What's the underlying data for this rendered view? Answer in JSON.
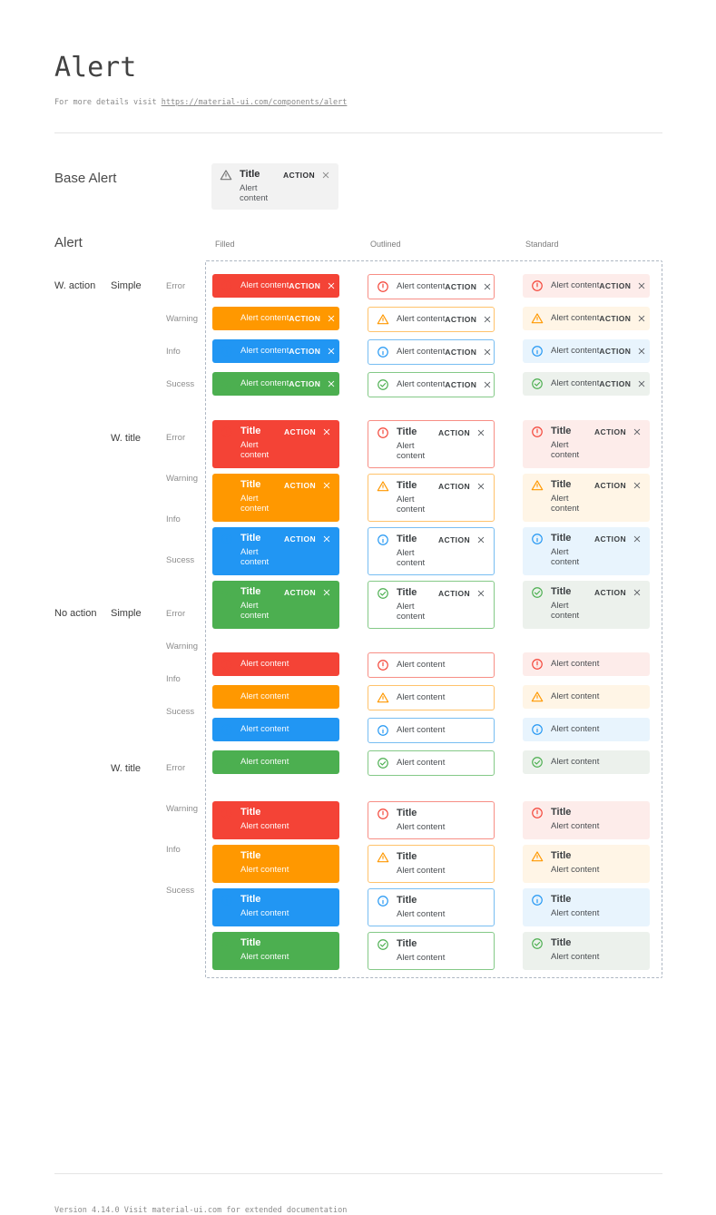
{
  "page": {
    "title": "Alert",
    "subtitle_prefix": "For more details visit ",
    "subtitle_link": "https://material-ui.com/components/alert",
    "footer_text": "Version 4.14.0  Visit material-ui.com for extended documentation"
  },
  "base_alert_section": {
    "label": "Base Alert",
    "alert": {
      "title": "Title",
      "content": "Alert content",
      "action_label": "ACTION"
    }
  },
  "alert_grid": {
    "section_label": "Alert",
    "column_headers": [
      "Filled",
      "Outlined",
      "Standard"
    ],
    "variants": [
      "filled",
      "outlined",
      "standard"
    ],
    "groups": [
      {
        "group_label": "W. action",
        "style_label": "Simple",
        "has_title": false,
        "has_action": true
      },
      {
        "group_label": "",
        "style_label": "W. title",
        "has_title": true,
        "has_action": true
      },
      {
        "group_label": "No action",
        "style_label": "Simple",
        "has_title": false,
        "has_action": false
      },
      {
        "group_label": "",
        "style_label": "W. title",
        "has_title": true,
        "has_action": false
      }
    ],
    "severities": [
      {
        "label": "Error",
        "key": "error",
        "icon": "error-icon"
      },
      {
        "label": "Warning",
        "key": "warning",
        "icon": "warning-icon"
      },
      {
        "label": "Info",
        "key": "info",
        "icon": "info-icon"
      },
      {
        "label": "Sucess",
        "key": "success",
        "icon": "success-icon"
      }
    ],
    "alert_title": "Title",
    "alert_content": "Alert content",
    "action_label": "ACTION"
  },
  "colors": {
    "error": "#f44336",
    "warning": "#ff9800",
    "info": "#2196f3",
    "success": "#4caf50",
    "error_border": "#f78e85",
    "warning_border": "#ffc26b",
    "info_border": "#77bdf2",
    "success_border": "#84c987",
    "error_bg": "#fdecea",
    "warning_bg": "#fff5e6",
    "info_bg": "#e8f4fd",
    "success_bg": "#ecf1ec",
    "base_bg": "#f2f2f2",
    "base_icon": "#757575",
    "grid_border": "#aeb7c3"
  }
}
